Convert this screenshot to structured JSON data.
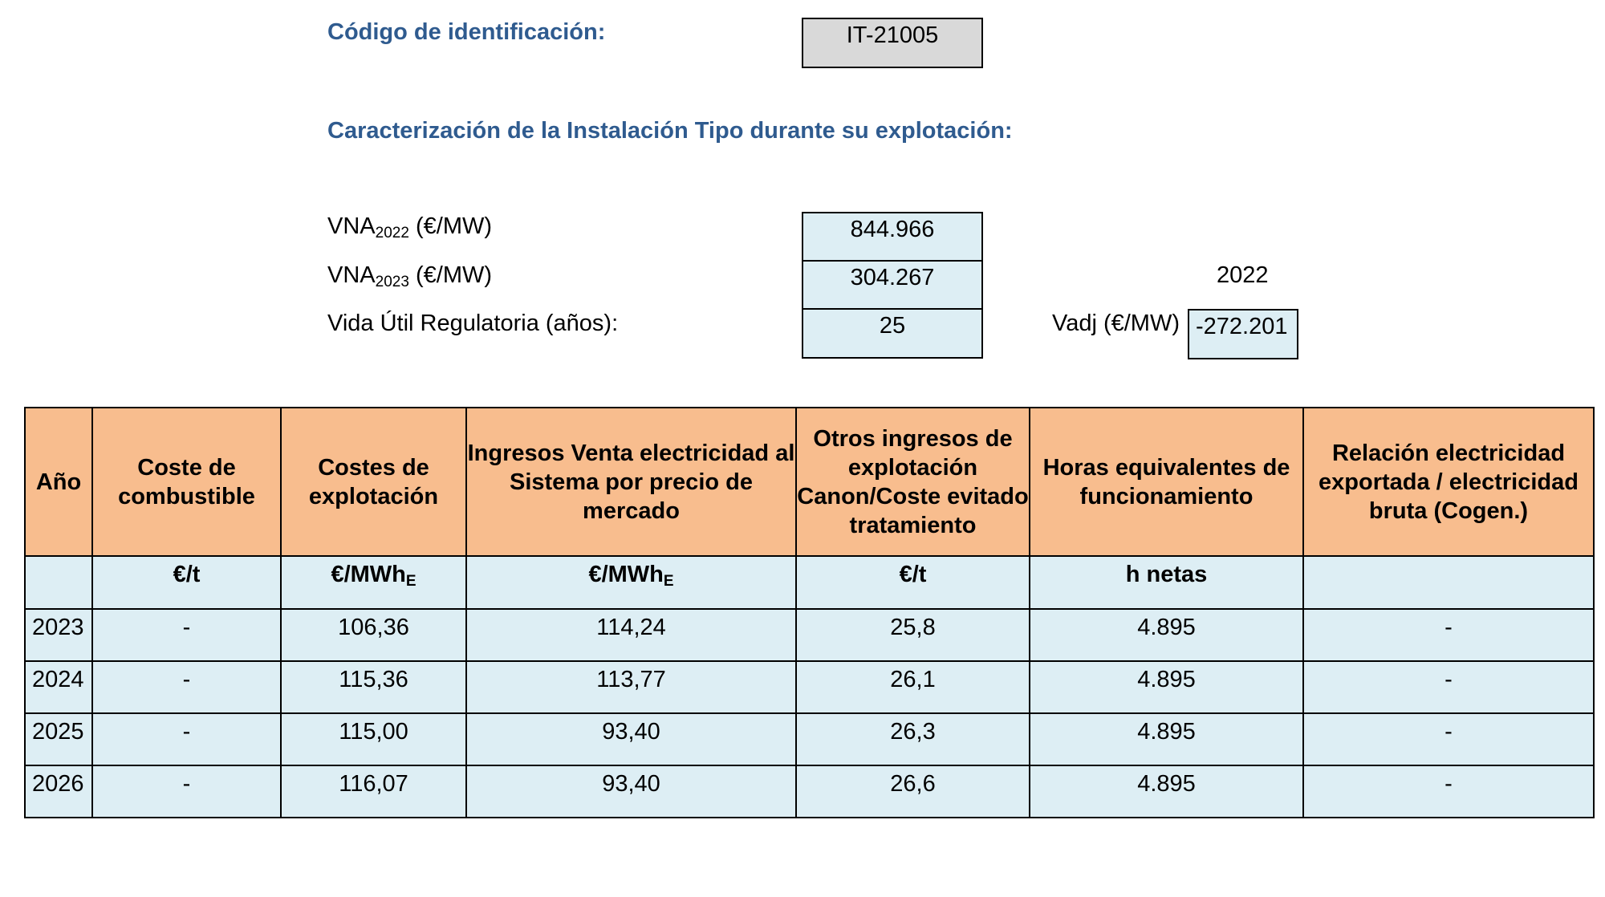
{
  "id_label": "Código de identificación:",
  "id_value": "IT-21005",
  "section_title": "Caracterización de la Instalación Tipo durante su explotación:",
  "vna2022": {
    "label": "VNA",
    "sub": "2022",
    "unit": " (€/MW)",
    "value": "844.966"
  },
  "vna2023": {
    "label": "VNA",
    "sub": "2023",
    "unit": " (€/MW)",
    "value": "304.267"
  },
  "vida_util": {
    "label": "Vida Útil Regulatoria (años):",
    "value": "25"
  },
  "vadj": {
    "year": "2022",
    "label": "Vadj (€/MW)",
    "value": "-272.201"
  },
  "table": {
    "headers": [
      "Año",
      "Coste de combustible",
      "Costes de explotación",
      "Ingresos Venta electricidad al Sistema por precio de mercado",
      "Otros ingresos de explotación Canon/Coste evitado tratamiento",
      "Horas equivalentes de funcionamiento",
      "Relación electricidad exportada / electricidad bruta (Cogen.)"
    ],
    "units": [
      "",
      "€/t",
      "€/MWh",
      "€/MWh",
      "€/t",
      "h netas",
      ""
    ],
    "units_sub": [
      "",
      "",
      "E",
      "E",
      "",
      "",
      ""
    ],
    "rows": [
      [
        "2023",
        "-",
        "106,36",
        "114,24",
        "25,8",
        "4.895",
        "-"
      ],
      [
        "2024",
        "-",
        "115,36",
        "113,77",
        "26,1",
        "4.895",
        "-"
      ],
      [
        "2025",
        "-",
        "115,00",
        "93,40",
        "26,3",
        "4.895",
        "-"
      ],
      [
        "2026",
        "-",
        "116,07",
        "93,40",
        "26,6",
        "4.895",
        "-"
      ]
    ]
  },
  "colors": {
    "heading": "#2f5b8f",
    "header_bg": "#f8bd8e",
    "cell_bg": "#ddeef4",
    "id_box_bg": "#d9d9d9"
  }
}
